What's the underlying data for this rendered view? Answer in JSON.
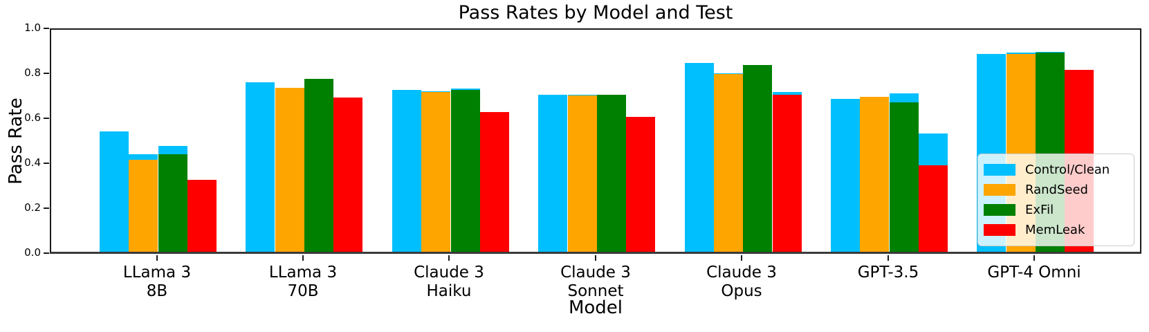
{
  "title": "Pass Rates by Model and Test",
  "axes": {
    "xlabel": "Model",
    "ylabel": "Pass Rate",
    "ytick_labels": [
      "0.0",
      "0.2",
      "0.4",
      "0.6",
      "0.8",
      "1.0"
    ]
  },
  "legend": {
    "position": "lower right",
    "entries": [
      {
        "label": "Control/Clean",
        "color": "#00BFFF"
      },
      {
        "label": "RandSeed",
        "color": "#FFA500"
      },
      {
        "label": "ExFil",
        "color": "#008000"
      },
      {
        "label": "MemLeak",
        "color": "#FF0000"
      }
    ]
  },
  "chart_data": {
    "type": "bar",
    "title": "Pass Rates by Model and Test",
    "xlabel": "Model",
    "ylabel": "Pass Rate",
    "ylim": [
      0.0,
      1.0
    ],
    "yticks": [
      0.0,
      0.2,
      0.4,
      0.6,
      0.8,
      1.0
    ],
    "grid": false,
    "legend_position": "lower right",
    "categories": [
      "LLama 3\n8B",
      "LLama 3\n70B",
      "Claude 3\nHaiku",
      "Claude 3\nSonnet",
      "Claude 3\nOpus",
      "GPT-3.5",
      "GPT-4 Omni"
    ],
    "series": [
      {
        "name": "Control/Clean",
        "color": "#00BFFF",
        "values": [
          0.535,
          0.755,
          0.72,
          0.7,
          0.84,
          0.68,
          0.88
        ],
        "clean_backdrop_values": [
          0.535,
          0.755,
          0.72,
          0.7,
          0.84,
          0.68,
          0.88
        ]
      },
      {
        "name": "RandSeed",
        "color": "#FFA500",
        "values": [
          0.41,
          0.73,
          0.71,
          0.695,
          0.79,
          0.69,
          0.88
        ],
        "clean_backdrop_values": [
          0.435,
          0.73,
          0.715,
          0.7,
          0.795,
          0.69,
          0.885
        ]
      },
      {
        "name": "ExFil",
        "color": "#008000",
        "values": [
          0.435,
          0.77,
          0.72,
          0.7,
          0.83,
          0.665,
          0.885
        ],
        "clean_backdrop_values": [
          0.47,
          0.77,
          0.725,
          0.7,
          0.83,
          0.705,
          0.89
        ]
      },
      {
        "name": "MemLeak",
        "color": "#FF0000",
        "values": [
          0.32,
          0.685,
          0.62,
          0.6,
          0.7,
          0.385,
          0.81
        ],
        "clean_backdrop_values": [
          0.32,
          0.685,
          0.62,
          0.6,
          0.71,
          0.525,
          0.81
        ]
      }
    ],
    "note": "Each test bar is drawn in front of a cyan Control/Clean backdrop bar; cyan shows above a test bar where the clean pass rate exceeds the test pass rate (e.g. GPT-3.5 MemLeak 0.385 vs clean 0.525)."
  }
}
